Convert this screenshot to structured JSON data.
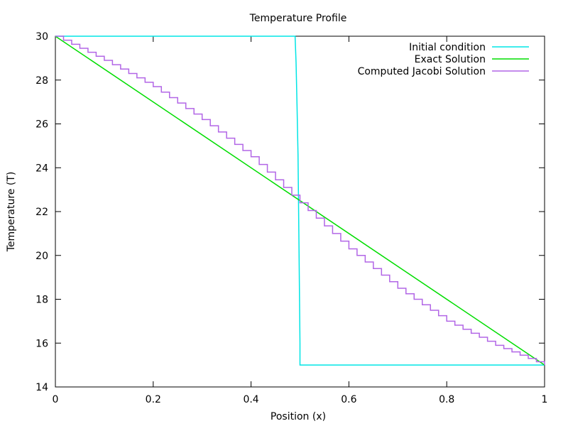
{
  "chart_data": {
    "type": "line",
    "title": "Temperature Profile",
    "xlabel": "Position (x)",
    "ylabel": "Temperature (T)",
    "xlim": [
      0,
      1
    ],
    "ylim": [
      14,
      30
    ],
    "x_ticks": [
      0,
      0.2,
      0.4,
      0.6,
      0.8,
      1
    ],
    "y_ticks": [
      14,
      16,
      18,
      20,
      22,
      24,
      26,
      28,
      30
    ],
    "grid": false,
    "legend_position": "top-right",
    "series": [
      {
        "name": "Initial condition",
        "color": "#00e5e5",
        "x": [
          0,
          0.49,
          0.492,
          0.494,
          0.496,
          0.498,
          0.5,
          0.5,
          1
        ],
        "y": [
          30,
          30,
          28.8,
          26.8,
          24.6,
          20.4,
          16,
          15,
          15
        ]
      },
      {
        "name": "Exact Solution",
        "color": "#00dd00",
        "x": [
          0,
          1
        ],
        "y": [
          30,
          15
        ]
      },
      {
        "name": "Computed Jacobi Solution",
        "color": "#b266e6",
        "x": [
          0,
          0.1,
          0.2,
          0.3,
          0.4,
          0.5,
          0.6,
          0.7,
          0.8,
          0.9,
          1
        ],
        "y": [
          30,
          28.9,
          27.7,
          26.2,
          24.5,
          22.4,
          20.3,
          18.5,
          17.0,
          15.9,
          15
        ]
      }
    ]
  }
}
